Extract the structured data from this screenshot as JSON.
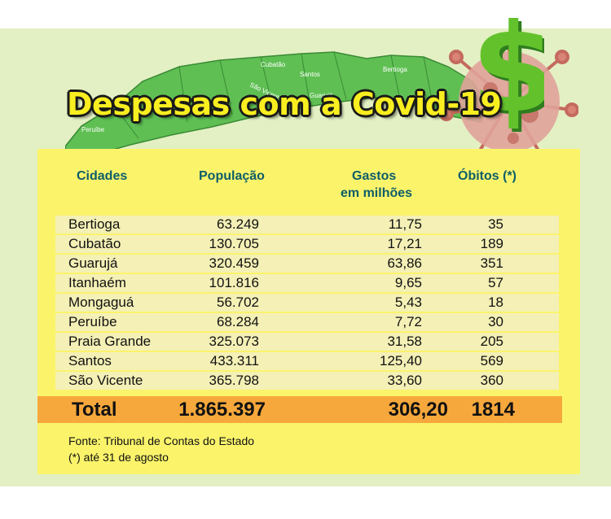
{
  "title": "Despesas com a Covid-19",
  "map_labels": [
    "Bertioga",
    "Cubatão",
    "Santos",
    "São Vicente",
    "Guarujá",
    "Peruíbe"
  ],
  "chart_data": {
    "type": "table",
    "columns": [
      "Cidades",
      "População",
      "Gastos em milhões",
      "Óbitos (*)"
    ],
    "rows": [
      {
        "city": "Bertioga",
        "population": "63.249",
        "spending": "11,75",
        "deaths": "35"
      },
      {
        "city": "Cubatão",
        "population": "130.705",
        "spending": "17,21",
        "deaths": "189"
      },
      {
        "city": "Guarujá",
        "population": "320.459",
        "spending": "63,86",
        "deaths": "351"
      },
      {
        "city": "Itanhaém",
        "population": "101.816",
        "spending": "9,65",
        "deaths": "57"
      },
      {
        "city": "Mongaguá",
        "population": "56.702",
        "spending": "5,43",
        "deaths": "18"
      },
      {
        "city": "Peruíbe",
        "population": "68.284",
        "spending": "7,72",
        "deaths": "30"
      },
      {
        "city": "Praia Grande",
        "population": "325.073",
        "spending": "31,58",
        "deaths": "205"
      },
      {
        "city": "Santos",
        "population": "433.311",
        "spending": "125,40",
        "deaths": "569"
      },
      {
        "city": "São Vicente",
        "population": "365.798",
        "spending": "33,60",
        "deaths": "360"
      }
    ],
    "total": {
      "label": "Total",
      "population": "1.865.397",
      "spending": "306,20",
      "deaths": "1814"
    }
  },
  "headers": {
    "cities": "Cidades",
    "population": "População",
    "spending_line1": "Gastos",
    "spending_line2": "em milhões",
    "deaths": "Óbitos (*)"
  },
  "footnotes": {
    "source": "Fonte: Tribunal de Contas do Estado",
    "note": "(*) até 31 de agosto"
  },
  "colors": {
    "panel": "#fbf46b",
    "row": "#f4f0b6",
    "total": "#f6a83c",
    "header_text": "#0e5d68",
    "map": "#5fbf53",
    "title": "#f8ee20"
  }
}
